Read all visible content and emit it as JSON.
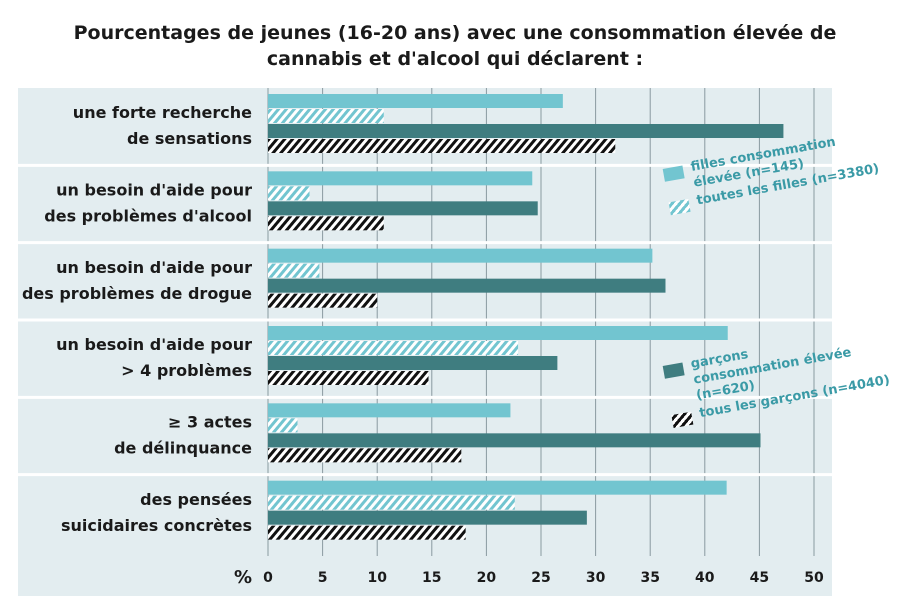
{
  "chart_data": {
    "type": "hbar",
    "title": "Pourcentages de jeunes (16-20 ans) avec une consommation élevée de cannabis et d'alcool qui déclarent :",
    "categories": [
      [
        "une forte recherche",
        "de sensations"
      ],
      [
        "un besoin d'aide pour",
        "des problèmes d'alcool"
      ],
      [
        "un besoin d'aide pour",
        "des problèmes de drogue"
      ],
      [
        "un besoin d'aide pour",
        "> 4 problèmes"
      ],
      [
        "≥ 3 actes",
        "de délinquance"
      ],
      [
        "des pensées",
        "suicidaires concrètes"
      ]
    ],
    "series": [
      {
        "name": "filles consommation élevée (n=145)",
        "color": "#72c5d0",
        "pattern": "solid",
        "values": [
          27,
          24.2,
          35.2,
          42.1,
          22.2,
          42
        ]
      },
      {
        "name": "toutes les filles (n=3380)",
        "color": "#72c5d0",
        "pattern": "hatch",
        "values": [
          10.6,
          3.8,
          4.7,
          22.9,
          2.7,
          22.6
        ]
      },
      {
        "name": "garçons consommation élevée (n=620)",
        "color": "#3f7d80",
        "pattern": "solid",
        "values": [
          47.2,
          24.7,
          36.4,
          26.5,
          45.1,
          29.2
        ]
      },
      {
        "name": "tous les garçons (n=4040)",
        "color": "#111111",
        "pattern": "hatch",
        "values": [
          31.8,
          10.6,
          10,
          14.7,
          17.7,
          18.1
        ]
      }
    ],
    "xlabel": "%",
    "xlim": [
      0,
      50
    ],
    "xticks": [
      0,
      5,
      10,
      15,
      20,
      25,
      30,
      35,
      40,
      45,
      50
    ],
    "grid": true
  }
}
